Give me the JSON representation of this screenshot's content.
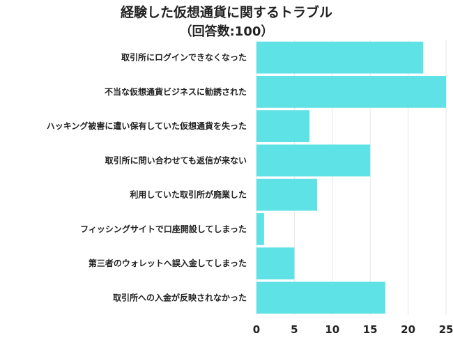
{
  "chart_data": {
    "type": "bar",
    "orientation": "horizontal",
    "title": "経験した仮想通貨に関するトラブル",
    "subtitle": "（回答数:100）",
    "categories": [
      "取引所にログインできなくなった",
      "不当な仮想通貨ビジネスに勧誘された",
      "ハッキング被害に遭い保有していた仮想通貨を失った",
      "取引所に問い合わせても返信が来ない",
      "利用していた取引所が廃業した",
      "フィッシングサイトで口座開設してしまった",
      "第三者のウォレットへ誤入金してしまった",
      "取引所への入金が反映されなかった"
    ],
    "values": [
      22,
      25,
      7,
      15,
      8,
      1,
      5,
      17
    ],
    "xlim": [
      0,
      25
    ],
    "xticks": [
      "0",
      "5",
      "10",
      "15",
      "20",
      "25"
    ],
    "xlabel": "",
    "ylabel": "",
    "grid": true,
    "legend": "none",
    "bar_color": "#5fe2e6",
    "grid_color": "#e6e6e6",
    "text_color": "#222222"
  }
}
